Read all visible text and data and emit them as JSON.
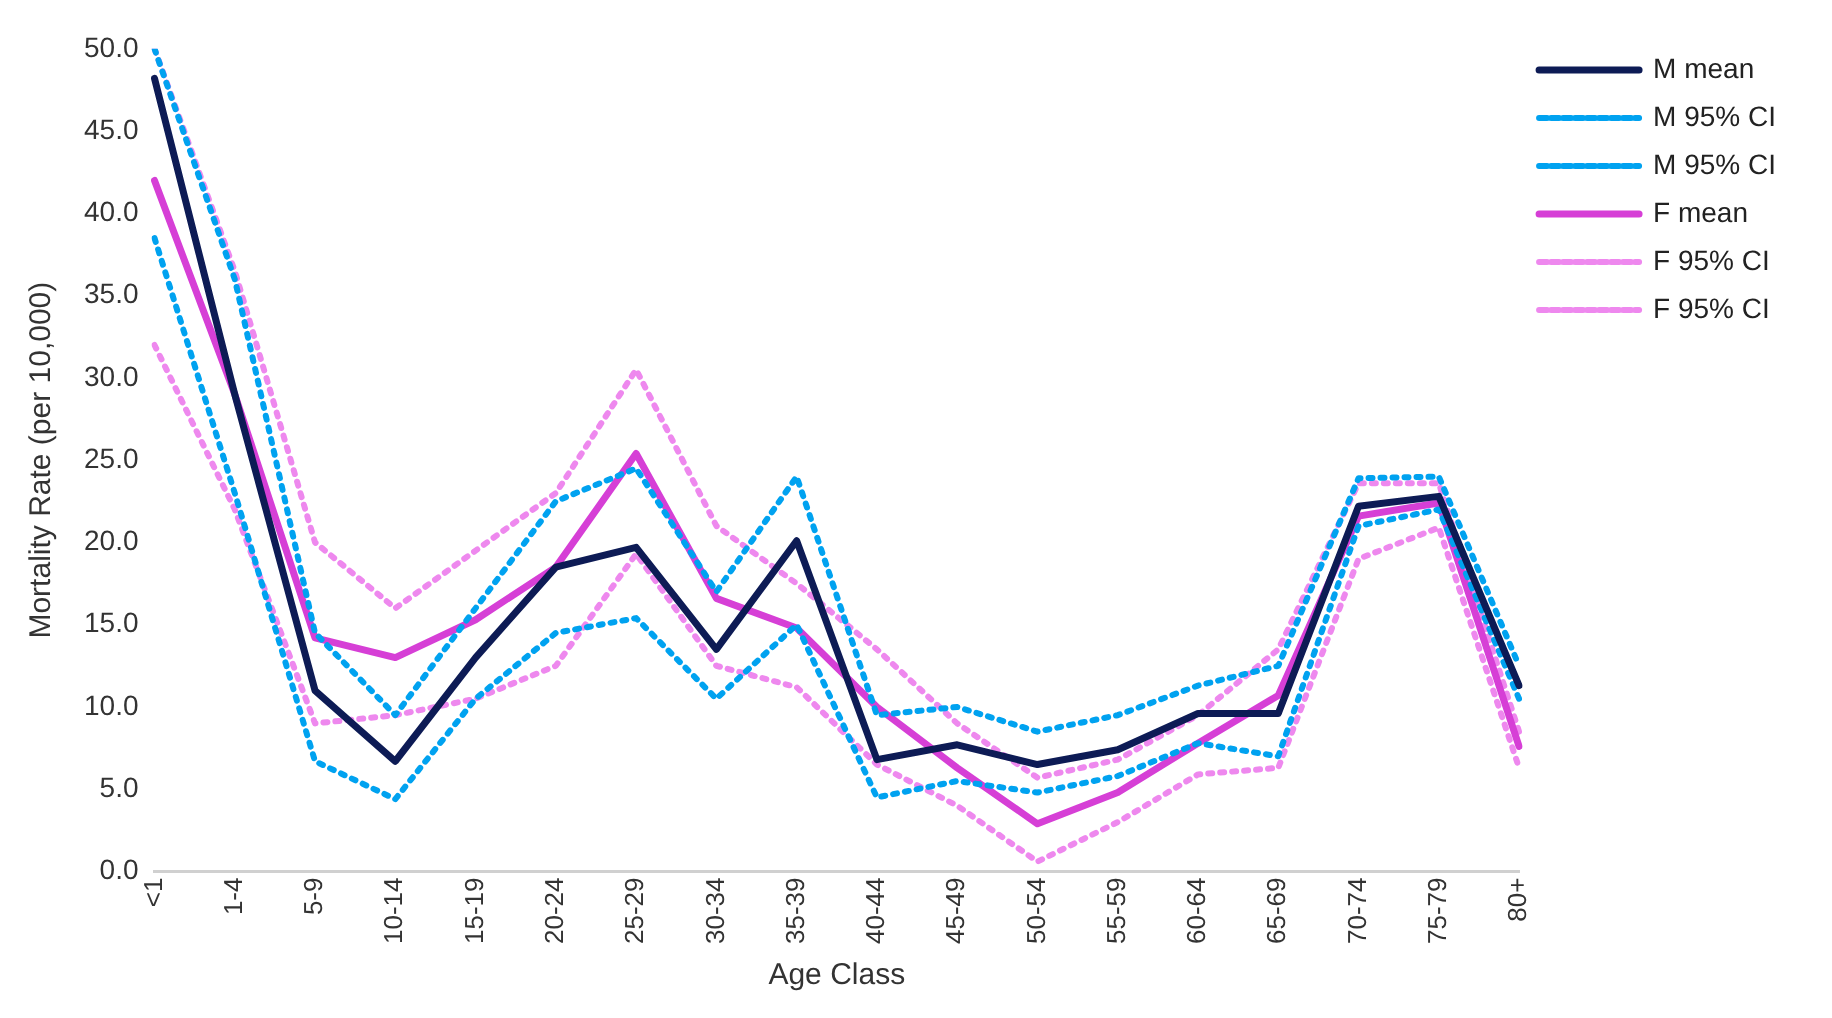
{
  "chart_data": {
    "type": "line",
    "xlabel": "Age Class",
    "ylabel": "Mortality Rate (per 10,000)",
    "categories": [
      "<1",
      "1-4",
      "5-9",
      "10-14",
      "15-19",
      "20-24",
      "25-29",
      "30-34",
      "35-39",
      "40-44",
      "45-49",
      "50-54",
      "55-59",
      "60-64",
      "65-69",
      "70-74",
      "75-79",
      "80+"
    ],
    "series": [
      {
        "name": "M mean",
        "color": "#0d1b55",
        "line_style": "solid",
        "values": [
          48.2,
          29,
          11,
          6.7,
          13,
          18.5,
          19.7,
          13.5,
          20.1,
          6.8,
          7.7,
          6.5,
          7.4,
          9.6,
          9.6,
          22.2,
          22.8,
          11.3
        ]
      },
      {
        "name": "M 95% CI",
        "color": "#00a2f0",
        "line_style": "dotted",
        "values": [
          38.5,
          23,
          6.7,
          4.4,
          10.5,
          14.5,
          15.4,
          10.5,
          15,
          4.5,
          5.5,
          4.8,
          5.8,
          7.8,
          7,
          21,
          22,
          10.5
        ]
      },
      {
        "name": "M 95% CI",
        "color": "#00a2f0",
        "line_style": "dotted",
        "values": [
          50,
          36,
          14.5,
          9.5,
          16,
          22.5,
          24.5,
          17,
          24,
          9.5,
          10,
          8.5,
          9.5,
          11.3,
          12.5,
          23.9,
          24,
          12.5
        ]
      },
      {
        "name": "F mean",
        "color": "#d63fd6",
        "line_style": "solid",
        "values": [
          42,
          29,
          14.2,
          13,
          15.3,
          18.5,
          25.4,
          16.6,
          14.8,
          10,
          6.3,
          2.9,
          4.8,
          7.8,
          10.7,
          21.6,
          22.4,
          7.6
        ]
      },
      {
        "name": "F 95% CI",
        "color": "#ee88ee",
        "line_style": "dotted",
        "values": [
          50,
          36.5,
          20,
          16,
          19.5,
          23,
          30.5,
          21,
          17.5,
          13.5,
          9,
          5.7,
          6.8,
          9.5,
          13.5,
          23.6,
          23.6,
          8.5
        ]
      },
      {
        "name": "F 95% CI",
        "color": "#ee88ee",
        "line_style": "dotted",
        "values": [
          32,
          22,
          9,
          9.5,
          10.5,
          12.5,
          19.3,
          12.5,
          11.2,
          6.5,
          4,
          0.6,
          3,
          5.9,
          6.3,
          19,
          20.9,
          6.3
        ]
      }
    ],
    "ylim": [
      0,
      50
    ],
    "yticks": [
      {
        "value": 0,
        "label": "0.0"
      },
      {
        "value": 5,
        "label": "5.0"
      },
      {
        "value": 10,
        "label": "10.0"
      },
      {
        "value": 15,
        "label": "15.0"
      },
      {
        "value": 20,
        "label": "20.0"
      },
      {
        "value": 25,
        "label": "25.0"
      },
      {
        "value": 30,
        "label": "30.0"
      },
      {
        "value": 35,
        "label": "35.0"
      },
      {
        "value": 40,
        "label": "40.0"
      },
      {
        "value": 45,
        "label": "45.0"
      },
      {
        "value": 50,
        "label": "50.0"
      }
    ],
    "grid": false,
    "legend": "top right",
    "marker": "none"
  }
}
